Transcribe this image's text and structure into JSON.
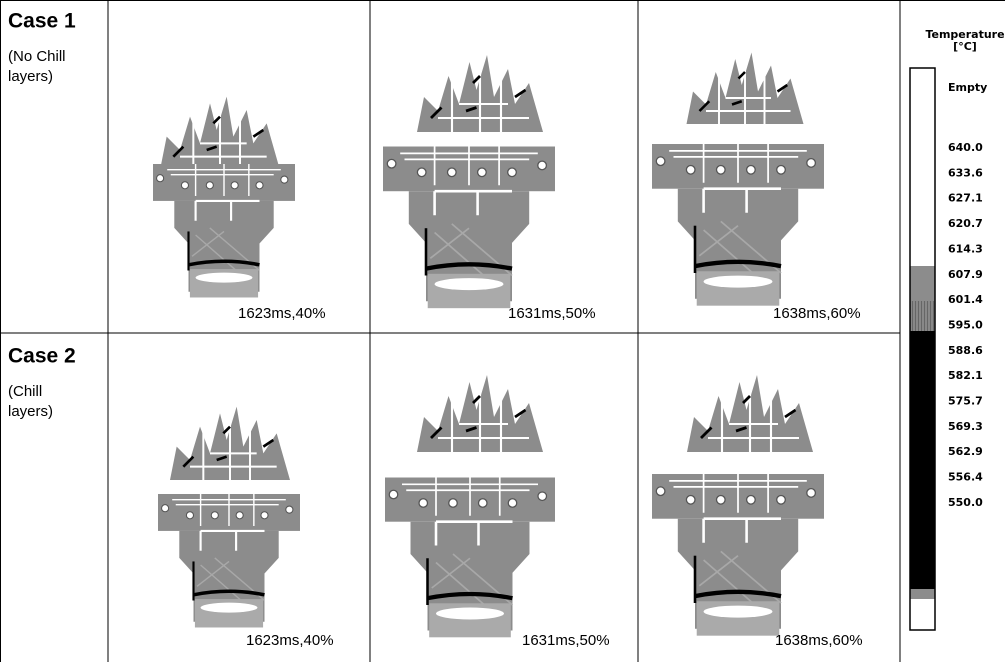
{
  "cases": [
    {
      "title": "Case 1",
      "subtitle_lines": [
        "(No Chill",
        "layers)"
      ],
      "panels": [
        "1623ms,40%",
        "1631ms,50%",
        "1638ms,60%"
      ]
    },
    {
      "title": "Case 2",
      "subtitle_lines": [
        "(Chill",
        "layers)"
      ],
      "panels": [
        "1623ms,40%",
        "1631ms,50%",
        "1638ms,60%"
      ]
    }
  ],
  "legend": {
    "title_lines": [
      "Temperature",
      "[°C]"
    ],
    "labels": [
      "Empty",
      "640.0",
      "633.6",
      "627.1",
      "620.7",
      "614.3",
      "607.9",
      "601.4",
      "595.0",
      "588.6",
      "582.1",
      "575.7",
      "569.3",
      "562.9",
      "556.4",
      "550.0"
    ]
  }
}
